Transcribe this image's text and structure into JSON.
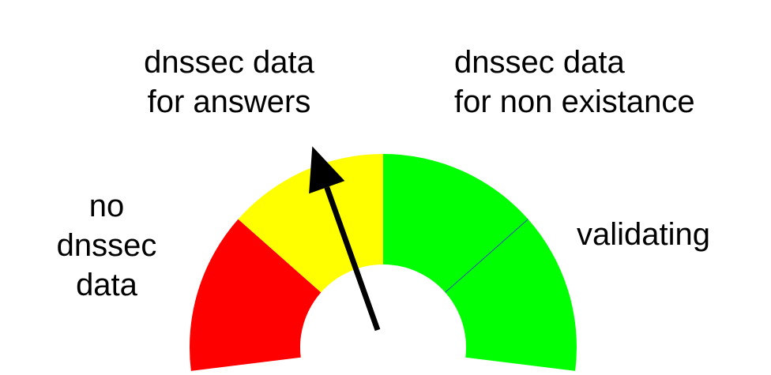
{
  "gauge": {
    "segments": [
      {
        "name": "no-dnssec-data",
        "color": "#ff0000"
      },
      {
        "name": "dnssec-data-for-answers",
        "color": "#ffff00"
      },
      {
        "name": "dnssec-data-for-non-existance",
        "color": "#00ff00"
      },
      {
        "name": "validating",
        "color": "#00ff00"
      }
    ],
    "divider_color": "#3355aa",
    "needle_color": "#000000",
    "needle_level": 0.4
  },
  "labels": {
    "no_dnssec": [
      "no",
      "dnssec",
      "data"
    ],
    "answers": [
      "dnssec data",
      "for answers"
    ],
    "non_existance": [
      "dnssec data",
      "for non existance"
    ],
    "validating": [
      "validating"
    ]
  }
}
